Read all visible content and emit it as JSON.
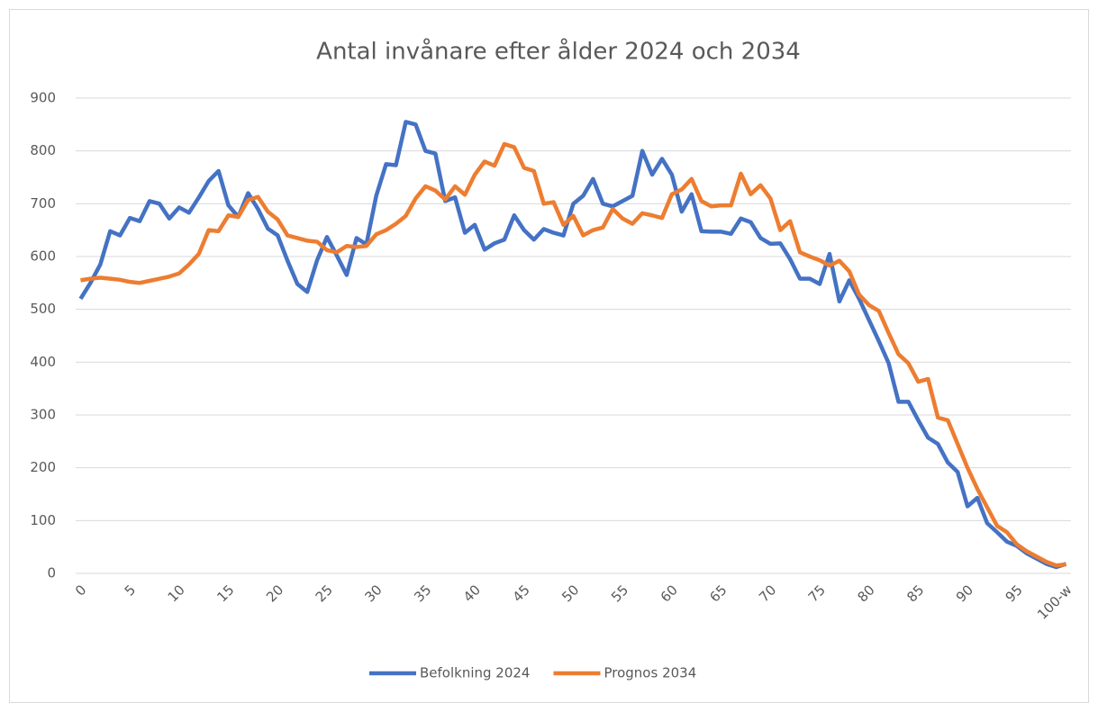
{
  "chart_data": {
    "type": "line",
    "title": "Antal invånare efter ålder 2024 och 2034",
    "categories": [
      "0",
      null,
      null,
      null,
      null,
      "5",
      null,
      null,
      null,
      null,
      "10",
      null,
      null,
      null,
      null,
      "15",
      null,
      null,
      null,
      null,
      "20",
      null,
      null,
      null,
      null,
      "25",
      null,
      null,
      null,
      null,
      "30",
      null,
      null,
      null,
      null,
      "35",
      null,
      null,
      null,
      null,
      "40",
      null,
      null,
      null,
      null,
      "45",
      null,
      null,
      null,
      null,
      "50",
      null,
      null,
      null,
      null,
      "55",
      null,
      null,
      null,
      null,
      "60",
      null,
      null,
      null,
      null,
      "65",
      null,
      null,
      null,
      null,
      "70",
      null,
      null,
      null,
      null,
      "75",
      null,
      null,
      null,
      null,
      "80",
      null,
      null,
      null,
      null,
      "85",
      null,
      null,
      null,
      null,
      "90",
      null,
      null,
      null,
      null,
      "95",
      null,
      null,
      null,
      null,
      "100-w"
    ],
    "series": [
      {
        "name": "Befolkning 2024",
        "color": "#4472c4",
        "values": [
          520,
          550,
          585,
          648,
          640,
          673,
          667,
          705,
          700,
          672,
          693,
          683,
          712,
          743,
          762,
          697,
          675,
          720,
          690,
          653,
          640,
          592,
          548,
          533,
          593,
          637,
          602,
          565,
          635,
          623,
          715,
          775,
          773,
          855,
          850,
          800,
          795,
          705,
          712,
          645,
          660,
          613,
          625,
          632,
          678,
          650,
          632,
          652,
          645,
          640,
          700,
          715,
          747,
          700,
          695,
          705,
          715,
          800,
          755,
          785,
          755,
          685,
          718,
          648,
          647,
          647,
          643,
          672,
          665,
          635,
          624,
          625,
          595,
          558,
          558,
          548,
          605,
          515,
          555,
          520,
          480,
          440,
          398,
          325,
          325,
          290,
          257,
          245,
          210,
          192,
          127,
          143,
          95,
          78,
          60,
          52,
          38,
          28,
          18,
          12,
          18
        ]
      },
      {
        "name": "Prognos 2034",
        "color": "#ed7d31",
        "values": [
          555,
          558,
          560,
          558,
          556,
          552,
          550,
          554,
          558,
          562,
          568,
          585,
          605,
          650,
          648,
          678,
          675,
          707,
          713,
          685,
          670,
          640,
          635,
          630,
          628,
          612,
          608,
          620,
          618,
          620,
          642,
          650,
          662,
          677,
          710,
          733,
          725,
          708,
          733,
          717,
          755,
          780,
          772,
          813,
          807,
          768,
          762,
          700,
          703,
          660,
          677,
          640,
          650,
          655,
          690,
          672,
          662,
          682,
          678,
          673,
          718,
          727,
          747,
          705,
          695,
          697,
          697,
          757,
          718,
          735,
          710,
          650,
          667,
          608,
          600,
          593,
          583,
          592,
          572,
          528,
          508,
          497,
          455,
          415,
          398,
          363,
          368,
          295,
          290,
          245,
          200,
          160,
          125,
          90,
          78,
          55,
          42,
          32,
          22,
          15,
          17
        ]
      }
    ],
    "ylim": [
      0,
      900
    ],
    "yticks": [
      0,
      100,
      200,
      300,
      400,
      500,
      600,
      700,
      800,
      900
    ],
    "grid": true,
    "legend": "bottom"
  }
}
